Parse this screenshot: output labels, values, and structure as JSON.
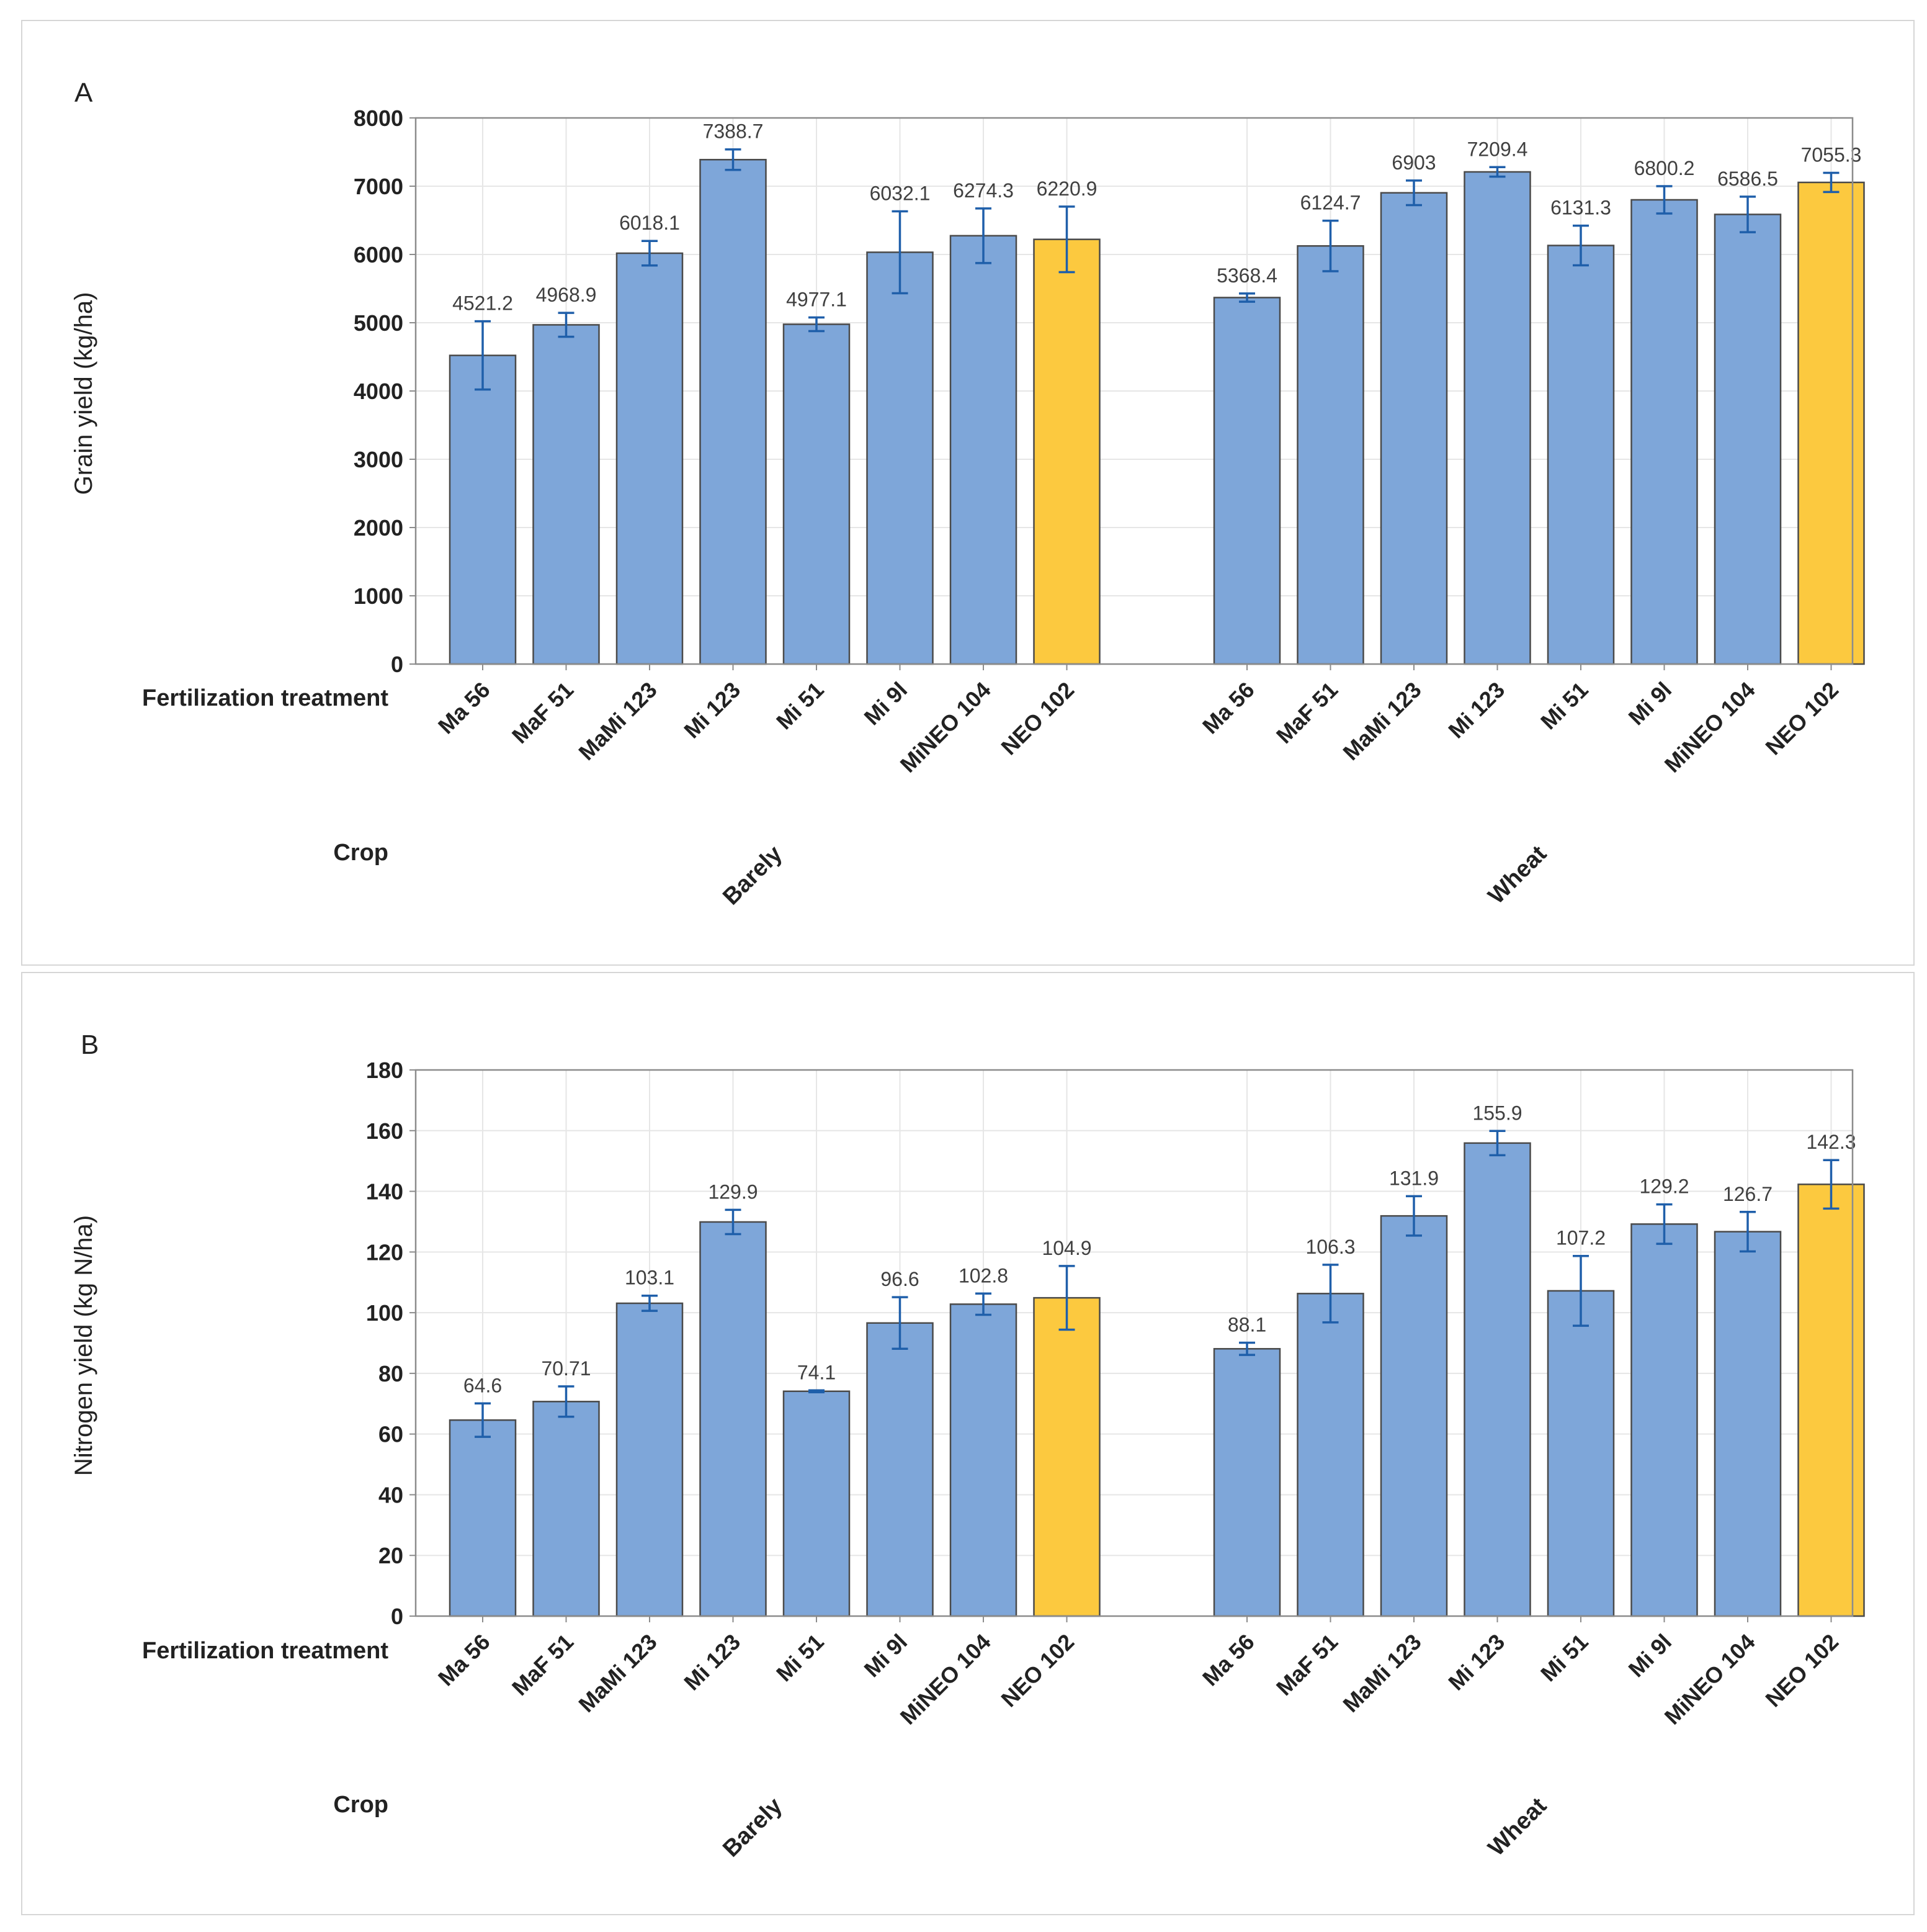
{
  "colors": {
    "bar": "#7ea6d9",
    "highlight": "#fcc93f",
    "bar_stroke": "#4a4a4a",
    "error": "#1f5faa",
    "grid": "#e6e6e6",
    "frame": "#8c8c8c",
    "text": "#222222",
    "label": "#404040"
  },
  "chart_data": [
    {
      "type": "bar",
      "panel": "A",
      "ylabel": "Grain yield (kg/ha)",
      "xlabel_rows": [
        "Fertilization treatment",
        "Crop"
      ],
      "ylim": [
        0,
        8000
      ],
      "yticks": [
        0,
        1000,
        2000,
        3000,
        4000,
        5000,
        6000,
        7000,
        8000
      ],
      "groups": [
        {
          "name": "Barely",
          "categories": [
            "Ma 56",
            "MaF 51",
            "MaMi 123",
            "Mi 123",
            "Mi 51",
            "Mi 9l",
            "MiNEO 104",
            "NEO 102"
          ],
          "values": [
            4521.2,
            4968.9,
            6018.1,
            7388.7,
            4977.1,
            6032.1,
            6274.3,
            6220.9
          ],
          "labels": [
            "4521.2",
            "4968.9",
            "6018.1",
            "7388.7",
            "4977.1",
            "6032.1",
            "6274.3",
            "6220.9"
          ],
          "errors": [
            500,
            175,
            180,
            150,
            100,
            600,
            400,
            480
          ],
          "highlight": [
            false,
            false,
            false,
            false,
            false,
            false,
            false,
            true
          ]
        },
        {
          "name": "Wheat",
          "categories": [
            "Ma 56",
            "MaF 51",
            "MaMi 123",
            "Mi 123",
            "Mi 51",
            "Mi 9l",
            "MiNEO 104",
            "NEO 102"
          ],
          "values": [
            5368.4,
            6124.7,
            6903,
            7209.4,
            6131.3,
            6800.2,
            6586.5,
            7055.3
          ],
          "labels": [
            "5368.4",
            "6124.7",
            "6903",
            "7209.4",
            "6131.3",
            "6800.2",
            "6586.5",
            "7055.3"
          ],
          "errors": [
            60,
            370,
            180,
            70,
            290,
            200,
            260,
            140
          ],
          "highlight": [
            false,
            false,
            false,
            false,
            false,
            false,
            false,
            true
          ]
        }
      ]
    },
    {
      "type": "bar",
      "panel": "B",
      "ylabel": "Nitrogen yield (kg N/ha)",
      "xlabel_rows": [
        "Fertilization treatment",
        "Crop"
      ],
      "ylim": [
        0,
        180
      ],
      "yticks": [
        0,
        20,
        40,
        60,
        80,
        100,
        120,
        140,
        160,
        180
      ],
      "groups": [
        {
          "name": "Barely",
          "categories": [
            "Ma 56",
            "MaF 51",
            "MaMi 123",
            "Mi 123",
            "Mi 51",
            "Mi 9l",
            "MiNEO 104",
            "NEO 102"
          ],
          "values": [
            64.6,
            70.71,
            103.1,
            129.9,
            74.1,
            96.6,
            102.8,
            104.9
          ],
          "labels": [
            "64.6",
            "70.71",
            "103.1",
            "129.9",
            "74.1",
            "96.6",
            "102.8",
            "104.9"
          ],
          "errors": [
            5.5,
            5.0,
            2.5,
            4.0,
            0.3,
            8.5,
            3.5,
            10.5
          ],
          "highlight": [
            false,
            false,
            false,
            false,
            false,
            false,
            false,
            true
          ]
        },
        {
          "name": "Wheat",
          "categories": [
            "Ma 56",
            "MaF 51",
            "MaMi 123",
            "Mi 123",
            "Mi 51",
            "Mi 9l",
            "MiNEO 104",
            "NEO 102"
          ],
          "values": [
            88.1,
            106.3,
            131.9,
            155.9,
            107.2,
            129.2,
            126.7,
            142.3
          ],
          "labels": [
            "88.1",
            "106.3",
            "131.9",
            "155.9",
            "107.2",
            "129.2",
            "126.7",
            "142.3"
          ],
          "errors": [
            2.0,
            9.5,
            6.5,
            4.0,
            11.5,
            6.5,
            6.5,
            8.0
          ],
          "highlight": [
            false,
            false,
            false,
            false,
            false,
            false,
            false,
            true
          ]
        }
      ]
    }
  ]
}
